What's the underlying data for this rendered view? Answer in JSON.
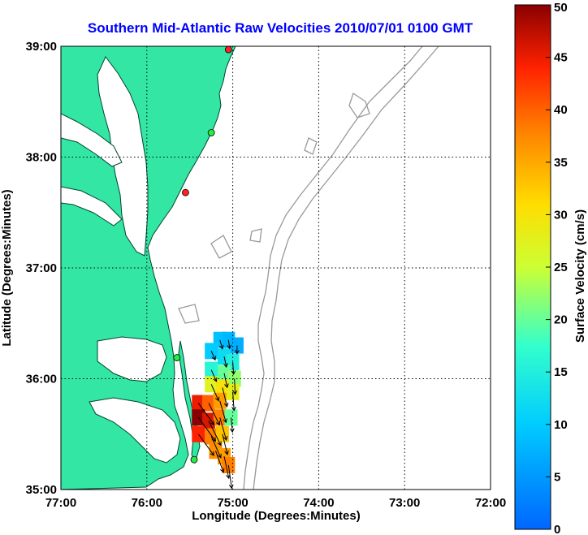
{
  "chart_data": {
    "type": "map-vector-field",
    "title": "Southern Mid-Atlantic Raw Velocities 2010/07/01 0100 GMT",
    "xlabel": "Longitude (Degrees:Minutes)",
    "ylabel": "Latitude (Degrees:Minutes)",
    "x_ticks": [
      "77:00",
      "76:00",
      "75:00",
      "74:00",
      "73:00",
      "72:00"
    ],
    "y_ticks": [
      "39:00",
      "38:00",
      "37:00",
      "36:00",
      "35:00"
    ],
    "xlim_deg_west": [
      77,
      72
    ],
    "ylim_deg_north": [
      35,
      39
    ],
    "grid": "dotted",
    "colorbar": {
      "label": "Surface Velocity (cm/s)",
      "ticks": [
        0,
        5,
        10,
        15,
        20,
        25,
        30,
        35,
        40,
        45,
        50
      ],
      "range": [
        0,
        50
      ],
      "colormap": "jet"
    },
    "colors": {
      "land": "#33e6a3",
      "water": "#ffffff",
      "title": "#0000ff",
      "bathymetry": "#999999"
    },
    "stations": [
      {
        "lon": -75.05,
        "lat": 38.97,
        "status": "red"
      },
      {
        "lon": -75.25,
        "lat": 38.22,
        "status": "green"
      },
      {
        "lon": -75.55,
        "lat": 37.68,
        "status": "red"
      },
      {
        "lon": -75.65,
        "lat": 36.19,
        "status": "green"
      },
      {
        "lon": -75.45,
        "lat": 35.27,
        "status": "green"
      }
    ],
    "velocity_field": [
      {
        "lon": -75.15,
        "lat": 36.35,
        "speed": 9
      },
      {
        "lon": -75.05,
        "lat": 36.35,
        "speed": 8
      },
      {
        "lon": -74.95,
        "lat": 36.3,
        "speed": 7
      },
      {
        "lon": -75.25,
        "lat": 36.25,
        "speed": 10
      },
      {
        "lon": -75.1,
        "lat": 36.2,
        "speed": 12
      },
      {
        "lon": -75.0,
        "lat": 36.15,
        "speed": 15
      },
      {
        "lon": -75.25,
        "lat": 36.08,
        "speed": 16
      },
      {
        "lon": -75.1,
        "lat": 36.05,
        "speed": 20
      },
      {
        "lon": -74.98,
        "lat": 36.0,
        "speed": 22
      },
      {
        "lon": -75.25,
        "lat": 35.95,
        "speed": 27
      },
      {
        "lon": -75.12,
        "lat": 35.92,
        "speed": 30
      },
      {
        "lon": -75.0,
        "lat": 35.88,
        "speed": 28
      },
      {
        "lon": -75.4,
        "lat": 35.78,
        "speed": 45
      },
      {
        "lon": -75.28,
        "lat": 35.78,
        "speed": 40
      },
      {
        "lon": -75.15,
        "lat": 35.8,
        "speed": 36
      },
      {
        "lon": -75.4,
        "lat": 35.65,
        "speed": 50
      },
      {
        "lon": -75.28,
        "lat": 35.62,
        "speed": 46
      },
      {
        "lon": -75.15,
        "lat": 35.65,
        "speed": 38
      },
      {
        "lon": -75.02,
        "lat": 35.65,
        "speed": 20
      },
      {
        "lon": -75.4,
        "lat": 35.5,
        "speed": 44
      },
      {
        "lon": -75.25,
        "lat": 35.48,
        "speed": 38
      },
      {
        "lon": -75.12,
        "lat": 35.5,
        "speed": 33
      },
      {
        "lon": -75.2,
        "lat": 35.35,
        "speed": 37
      },
      {
        "lon": -75.1,
        "lat": 35.3,
        "speed": 36
      },
      {
        "lon": -75.05,
        "lat": 35.22,
        "speed": 38
      }
    ]
  }
}
